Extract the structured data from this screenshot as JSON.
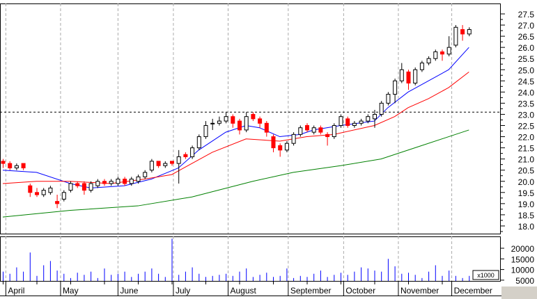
{
  "chart_data": {
    "type": "candlestick",
    "price_axis": {
      "ticks": [
        "18.0",
        "18.5",
        "19.0",
        "19.5",
        "20.0",
        "20.5",
        "21.0",
        "21.5",
        "22.0",
        "22.5",
        "23.0",
        "23.5",
        "24.0",
        "24.5",
        "25.0",
        "25.5",
        "26.0",
        "26.5",
        "27.0",
        "27.5"
      ],
      "ylim": [
        17.7,
        27.8
      ]
    },
    "reference_line": 23.1,
    "months": [
      {
        "label": "April",
        "index": 0.4
      },
      {
        "label": "May",
        "index": 8.5
      },
      {
        "label": "June",
        "index": 17
      },
      {
        "label": "July",
        "index": 25.2
      },
      {
        "label": "August",
        "index": 33.3
      },
      {
        "label": "September",
        "index": 42.2
      },
      {
        "label": "October",
        "index": 50.4
      },
      {
        "label": "November",
        "index": 58.5
      },
      {
        "label": "December",
        "index": 66.4
      }
    ],
    "candles": [
      [
        20.9,
        21.0,
        20.6,
        20.8
      ],
      [
        20.8,
        20.9,
        20.5,
        20.6
      ],
      [
        20.6,
        20.8,
        20.5,
        20.7
      ],
      [
        20.8,
        20.8,
        20.5,
        20.6
      ],
      [
        19.8,
        19.9,
        19.3,
        19.5
      ],
      [
        19.5,
        19.7,
        19.3,
        19.4
      ],
      [
        19.4,
        19.7,
        19.3,
        19.6
      ],
      [
        19.5,
        19.8,
        19.4,
        19.7
      ],
      [
        19.1,
        19.4,
        18.8,
        19.0
      ],
      [
        19.2,
        19.6,
        19.1,
        19.5
      ],
      [
        19.6,
        20.0,
        19.5,
        19.9
      ],
      [
        19.9,
        20.0,
        19.7,
        19.8
      ],
      [
        19.9,
        20.0,
        19.4,
        19.6
      ],
      [
        19.6,
        20.0,
        19.5,
        19.9
      ],
      [
        19.8,
        20.1,
        19.7,
        20.0
      ],
      [
        20.0,
        20.1,
        19.8,
        19.9
      ],
      [
        19.9,
        20.1,
        19.8,
        20.0
      ],
      [
        19.9,
        20.2,
        19.8,
        20.1
      ],
      [
        20.1,
        20.2,
        19.8,
        19.9
      ],
      [
        19.9,
        20.2,
        19.8,
        20.1
      ],
      [
        20.0,
        20.3,
        19.9,
        20.2
      ],
      [
        20.2,
        20.5,
        20.1,
        20.4
      ],
      [
        20.5,
        21.0,
        20.4,
        20.9
      ],
      [
        20.9,
        20.9,
        20.6,
        20.7
      ],
      [
        20.7,
        20.9,
        20.6,
        20.8
      ],
      [
        20.9,
        20.9,
        20.7,
        20.8
      ],
      [
        20.8,
        21.4,
        19.9,
        21.1
      ],
      [
        21.2,
        21.3,
        21.0,
        21.1
      ],
      [
        21.1,
        21.6,
        21.0,
        21.5
      ],
      [
        21.5,
        22.1,
        21.4,
        22.0
      ],
      [
        22.0,
        22.7,
        21.9,
        22.5
      ],
      [
        22.6,
        22.8,
        22.3,
        22.6
      ],
      [
        22.6,
        22.9,
        22.5,
        22.7
      ],
      [
        22.7,
        23.1,
        22.6,
        22.9
      ],
      [
        22.9,
        23.0,
        22.4,
        22.6
      ],
      [
        22.7,
        22.8,
        22.1,
        22.3
      ],
      [
        22.3,
        23.1,
        22.2,
        22.9
      ],
      [
        23.0,
        23.1,
        22.7,
        22.8
      ],
      [
        22.8,
        22.9,
        22.4,
        22.6
      ],
      [
        22.6,
        22.7,
        22.0,
        22.2
      ],
      [
        22.0,
        22.1,
        21.3,
        21.5
      ],
      [
        21.6,
        21.7,
        21.1,
        21.4
      ],
      [
        21.4,
        21.8,
        21.3,
        21.7
      ],
      [
        21.7,
        22.2,
        21.6,
        22.1
      ],
      [
        22.1,
        22.5,
        22.0,
        22.4
      ],
      [
        22.5,
        22.6,
        22.2,
        22.3
      ],
      [
        22.2,
        22.5,
        22.1,
        22.4
      ],
      [
        22.4,
        22.5,
        22.1,
        22.2
      ],
      [
        22.1,
        22.2,
        21.6,
        22.0
      ],
      [
        22.0,
        22.6,
        21.9,
        22.5
      ],
      [
        22.5,
        23.0,
        22.4,
        22.9
      ],
      [
        22.8,
        22.9,
        22.4,
        22.5
      ],
      [
        22.5,
        22.7,
        22.4,
        22.6
      ],
      [
        22.6,
        22.8,
        22.5,
        22.7
      ],
      [
        22.7,
        23.0,
        22.6,
        22.9
      ],
      [
        22.8,
        23.2,
        22.4,
        23.0
      ],
      [
        23.0,
        23.6,
        22.9,
        23.5
      ],
      [
        23.5,
        24.0,
        23.4,
        23.9
      ],
      [
        23.9,
        24.6,
        23.5,
        24.5
      ],
      [
        24.5,
        25.3,
        24.4,
        25.0
      ],
      [
        24.9,
        25.0,
        24.1,
        24.4
      ],
      [
        24.4,
        25.1,
        24.3,
        25.0
      ],
      [
        25.0,
        25.4,
        24.9,
        25.3
      ],
      [
        25.3,
        25.6,
        25.2,
        25.5
      ],
      [
        25.5,
        25.9,
        25.4,
        25.8
      ],
      [
        25.8,
        25.9,
        25.4,
        25.7
      ],
      [
        25.7,
        26.5,
        25.6,
        26.0
      ],
      [
        26.1,
        27.0,
        26.0,
        26.9
      ],
      [
        26.8,
        27.0,
        26.3,
        26.6
      ],
      [
        26.6,
        26.9,
        26.5,
        26.8
      ]
    ],
    "moving_averages": [
      {
        "color": "#0000ff",
        "points": [
          [
            0,
            20.5
          ],
          [
            5,
            20.4
          ],
          [
            10,
            19.9
          ],
          [
            13,
            19.7
          ],
          [
            18,
            19.8
          ],
          [
            22,
            20.1
          ],
          [
            26,
            20.6
          ],
          [
            29,
            21.4
          ],
          [
            33,
            22.2
          ],
          [
            36,
            22.5
          ],
          [
            38,
            22.4
          ],
          [
            41,
            22.0
          ],
          [
            44,
            22.1
          ],
          [
            46,
            22.3
          ],
          [
            50,
            22.5
          ],
          [
            55,
            22.7
          ],
          [
            57,
            23.3
          ],
          [
            60,
            24.0
          ],
          [
            63,
            24.5
          ],
          [
            66,
            25.0
          ],
          [
            69,
            26.0
          ]
        ]
      },
      {
        "color": "#ff0000",
        "points": [
          [
            0,
            19.9
          ],
          [
            5,
            20.0
          ],
          [
            10,
            20.0
          ],
          [
            16,
            19.9
          ],
          [
            21,
            20.1
          ],
          [
            25,
            20.3
          ],
          [
            28,
            20.8
          ],
          [
            31,
            21.3
          ],
          [
            36,
            21.9
          ],
          [
            41,
            21.8
          ],
          [
            45,
            22.0
          ],
          [
            49,
            22.1
          ],
          [
            55,
            22.5
          ],
          [
            58,
            22.9
          ],
          [
            60,
            23.3
          ],
          [
            63,
            23.7
          ],
          [
            66,
            24.2
          ],
          [
            69,
            24.9
          ]
        ]
      },
      {
        "color": "#008000",
        "points": [
          [
            0,
            18.4
          ],
          [
            10,
            18.7
          ],
          [
            20,
            18.9
          ],
          [
            28,
            19.3
          ],
          [
            37,
            20.0
          ],
          [
            43,
            20.4
          ],
          [
            50,
            20.7
          ],
          [
            56,
            21.0
          ],
          [
            62,
            21.6
          ],
          [
            66,
            22.0
          ],
          [
            69,
            22.3
          ]
        ]
      }
    ],
    "candle_colors": {
      "up": "#000000",
      "down": "#ff0000"
    },
    "volume": {
      "unit_label": "x1000",
      "ticks": [
        "20000",
        "15000",
        "10000",
        "5000"
      ],
      "ylim": [
        4000,
        26000
      ],
      "color": "#0000ff",
      "values": [
        9000,
        8000,
        11000,
        9000,
        18000,
        7000,
        12000,
        14000,
        9500,
        8000,
        6000,
        8500,
        7500,
        9000,
        6000,
        10500,
        7500,
        8000,
        9000,
        6500,
        8000,
        9000,
        10500,
        8000,
        6500,
        24500,
        7500,
        9000,
        11000,
        8000,
        6500,
        7000,
        7500,
        8000,
        7000,
        9000,
        10500,
        6500,
        7500,
        8500,
        6500,
        7000,
        10500,
        6000,
        7000,
        6500,
        8000,
        9500,
        6500,
        7500,
        8500,
        7500,
        9000,
        11000,
        10500,
        9500,
        9000,
        15000,
        11500,
        8000,
        8500,
        7500,
        6000,
        9000,
        12000,
        7000,
        9500,
        7000,
        6000,
        7000
      ]
    }
  }
}
